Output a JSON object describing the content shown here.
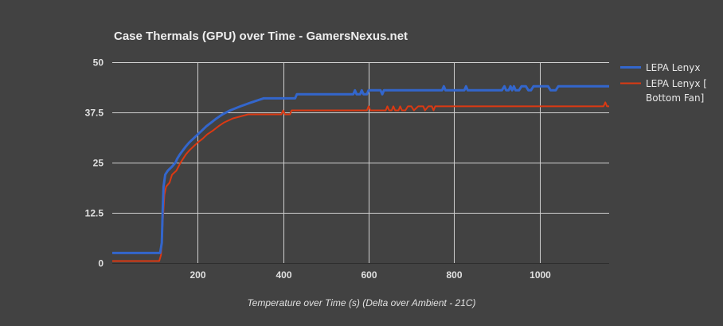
{
  "chart_data": {
    "type": "line",
    "title": "Case Thermals (GPU) over Time - GamersNexus.net",
    "xlabel": "Temperature over Time (s) (Delta over Ambient - 21C)",
    "ylabel": "",
    "xlim": [
      0,
      1163
    ],
    "ylim": [
      0,
      50
    ],
    "xticks": [
      200,
      400,
      600,
      800,
      1000
    ],
    "xtick_labels": [
      "200",
      "400",
      "600",
      "800",
      "1000"
    ],
    "yticks": [
      0,
      12.5,
      25,
      37.5,
      50
    ],
    "ytick_labels": [
      "0",
      "12.5",
      "25",
      "37.5",
      "50"
    ],
    "grid": true,
    "legend_position": "right",
    "series": [
      {
        "name": "LEPA Lenyx",
        "color": "#3366cc",
        "points": [
          [
            0,
            2.5
          ],
          [
            112,
            2.5
          ],
          [
            116,
            5
          ],
          [
            118,
            13
          ],
          [
            120,
            19
          ],
          [
            124,
            22
          ],
          [
            130,
            23
          ],
          [
            140,
            24
          ],
          [
            148,
            25
          ],
          [
            152,
            26
          ],
          [
            158,
            27
          ],
          [
            165,
            28
          ],
          [
            172,
            29
          ],
          [
            180,
            30
          ],
          [
            190,
            31
          ],
          [
            200,
            32
          ],
          [
            210,
            33
          ],
          [
            220,
            34
          ],
          [
            232,
            35
          ],
          [
            244,
            36
          ],
          [
            258,
            37
          ],
          [
            276,
            38
          ],
          [
            300,
            39
          ],
          [
            326,
            40
          ],
          [
            354,
            41
          ],
          [
            376,
            41
          ],
          [
            406,
            41
          ],
          [
            428,
            41
          ],
          [
            432,
            42
          ],
          [
            480,
            42
          ],
          [
            564,
            42
          ],
          [
            568,
            43
          ],
          [
            572,
            42
          ],
          [
            580,
            42
          ],
          [
            584,
            43
          ],
          [
            588,
            42
          ],
          [
            596,
            42
          ],
          [
            600,
            43
          ],
          [
            628,
            43
          ],
          [
            632,
            42
          ],
          [
            636,
            43
          ],
          [
            680,
            43
          ],
          [
            772,
            43
          ],
          [
            776,
            44
          ],
          [
            780,
            43
          ],
          [
            824,
            43
          ],
          [
            828,
            44
          ],
          [
            832,
            43
          ],
          [
            912,
            43
          ],
          [
            918,
            44
          ],
          [
            922,
            43
          ],
          [
            928,
            43
          ],
          [
            932,
            44
          ],
          [
            936,
            43
          ],
          [
            940,
            44
          ],
          [
            944,
            43
          ],
          [
            952,
            43
          ],
          [
            958,
            44
          ],
          [
            968,
            44
          ],
          [
            974,
            43
          ],
          [
            980,
            43
          ],
          [
            986,
            44
          ],
          [
            1020,
            44
          ],
          [
            1026,
            43
          ],
          [
            1038,
            43
          ],
          [
            1044,
            44
          ],
          [
            1163,
            44
          ]
        ]
      },
      {
        "name": "LEPA Lenyx [ Bottom Fan]",
        "color": "#dc3912",
        "points": [
          [
            0,
            0.5
          ],
          [
            110,
            0.5
          ],
          [
            114,
            2
          ],
          [
            118,
            10
          ],
          [
            122,
            17
          ],
          [
            126,
            19
          ],
          [
            134,
            20
          ],
          [
            140,
            22
          ],
          [
            150,
            23
          ],
          [
            160,
            25
          ],
          [
            172,
            27
          ],
          [
            180,
            28
          ],
          [
            190,
            29
          ],
          [
            200,
            30
          ],
          [
            212,
            31
          ],
          [
            222,
            32
          ],
          [
            236,
            33
          ],
          [
            248,
            34
          ],
          [
            262,
            35
          ],
          [
            282,
            36
          ],
          [
            318,
            37
          ],
          [
            340,
            37
          ],
          [
            396,
            37
          ],
          [
            400,
            38
          ],
          [
            404,
            37
          ],
          [
            416,
            37
          ],
          [
            420,
            38
          ],
          [
            454,
            38
          ],
          [
            500,
            38
          ],
          [
            596,
            38
          ],
          [
            600,
            39
          ],
          [
            604,
            38
          ],
          [
            640,
            38
          ],
          [
            644,
            39
          ],
          [
            648,
            38
          ],
          [
            654,
            38
          ],
          [
            658,
            39
          ],
          [
            662,
            38
          ],
          [
            670,
            38
          ],
          [
            674,
            39
          ],
          [
            678,
            38
          ],
          [
            686,
            38
          ],
          [
            692,
            39
          ],
          [
            700,
            39
          ],
          [
            706,
            38
          ],
          [
            716,
            39
          ],
          [
            728,
            39
          ],
          [
            732,
            38
          ],
          [
            740,
            39
          ],
          [
            748,
            39
          ],
          [
            752,
            38
          ],
          [
            756,
            39
          ],
          [
            1150,
            39
          ],
          [
            1154,
            40
          ],
          [
            1158,
            39
          ],
          [
            1163,
            39
          ]
        ]
      }
    ]
  },
  "legend": {
    "items": [
      {
        "label_line1": "LEPA Lenyx",
        "label_line2": "",
        "color": "#3366cc"
      },
      {
        "label_line1": "LEPA Lenyx [",
        "label_line2": "Bottom Fan]",
        "color": "#dc3912"
      }
    ]
  },
  "colors": {
    "background": "#424242",
    "grid": "#d0d0d0",
    "text": "#e0e0e0"
  }
}
